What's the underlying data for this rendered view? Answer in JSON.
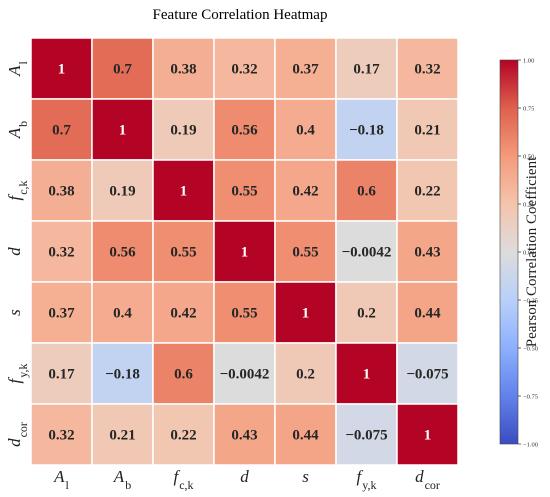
{
  "chart_data": {
    "type": "heatmap",
    "title": "Feature Correlation Heatmap",
    "row_labels": [
      {
        "base": "A",
        "sub": "l"
      },
      {
        "base": "A",
        "sub": "b"
      },
      {
        "base": "f",
        "sub": "c,k"
      },
      {
        "base": "d",
        "sub": ""
      },
      {
        "base": "s",
        "sub": ""
      },
      {
        "base": "f",
        "sub": "y,k"
      },
      {
        "base": "d",
        "sub": "cor"
      }
    ],
    "col_labels": [
      {
        "base": "A",
        "sub": "l"
      },
      {
        "base": "A",
        "sub": "b"
      },
      {
        "base": "f",
        "sub": "c,k"
      },
      {
        "base": "d",
        "sub": ""
      },
      {
        "base": "s",
        "sub": ""
      },
      {
        "base": "f",
        "sub": "y,k"
      },
      {
        "base": "d",
        "sub": "cor"
      }
    ],
    "values": [
      [
        1,
        0.7,
        0.38,
        0.32,
        0.37,
        0.17,
        0.32
      ],
      [
        0.7,
        1,
        0.19,
        0.56,
        0.4,
        -0.18,
        0.21
      ],
      [
        0.38,
        0.19,
        1,
        0.55,
        0.42,
        0.6,
        0.22
      ],
      [
        0.32,
        0.56,
        0.55,
        1,
        0.55,
        -0.0042,
        0.43
      ],
      [
        0.37,
        0.4,
        0.42,
        0.55,
        1,
        0.2,
        0.44
      ],
      [
        0.17,
        -0.18,
        0.6,
        -0.0042,
        0.2,
        1,
        -0.075
      ],
      [
        0.32,
        0.21,
        0.22,
        0.43,
        0.44,
        -0.075,
        1
      ]
    ],
    "cell_labels": [
      [
        "1",
        "0.7",
        "0.38",
        "0.32",
        "0.37",
        "0.17",
        "0.32"
      ],
      [
        "0.7",
        "1",
        "0.19",
        "0.56",
        "0.4",
        "−0.18",
        "0.21"
      ],
      [
        "0.38",
        "0.19",
        "1",
        "0.55",
        "0.42",
        "0.6",
        "0.22"
      ],
      [
        "0.32",
        "0.56",
        "0.55",
        "1",
        "0.55",
        "−0.0042",
        "0.43"
      ],
      [
        "0.37",
        "0.4",
        "0.42",
        "0.55",
        "1",
        "0.2",
        "0.44"
      ],
      [
        "0.17",
        "−0.18",
        "0.6",
        "−0.0042",
        "0.2",
        "1",
        "−0.075"
      ],
      [
        "0.32",
        "0.21",
        "0.22",
        "0.43",
        "0.44",
        "−0.075",
        "1"
      ]
    ],
    "colorbar": {
      "label": "Pearson Correlation Coefficient",
      "range": [
        -1,
        1
      ],
      "ticks": [
        1,
        0.75,
        0.5,
        0.25,
        0,
        -0.25,
        -0.5,
        -0.75,
        -1
      ],
      "tick_labels": [
        "1.00",
        "0.75",
        "0.50",
        "0.25",
        "0.00",
        "−0.25",
        "−0.50",
        "−0.75",
        "−1.00"
      ],
      "colormap": "coolwarm",
      "colors": [
        "#3b4cc0",
        "#6282ea",
        "#8db0fe",
        "#b8d0f9",
        "#dddcdc",
        "#f5c4ac",
        "#f49a7b",
        "#de604d",
        "#b40426"
      ]
    }
  }
}
